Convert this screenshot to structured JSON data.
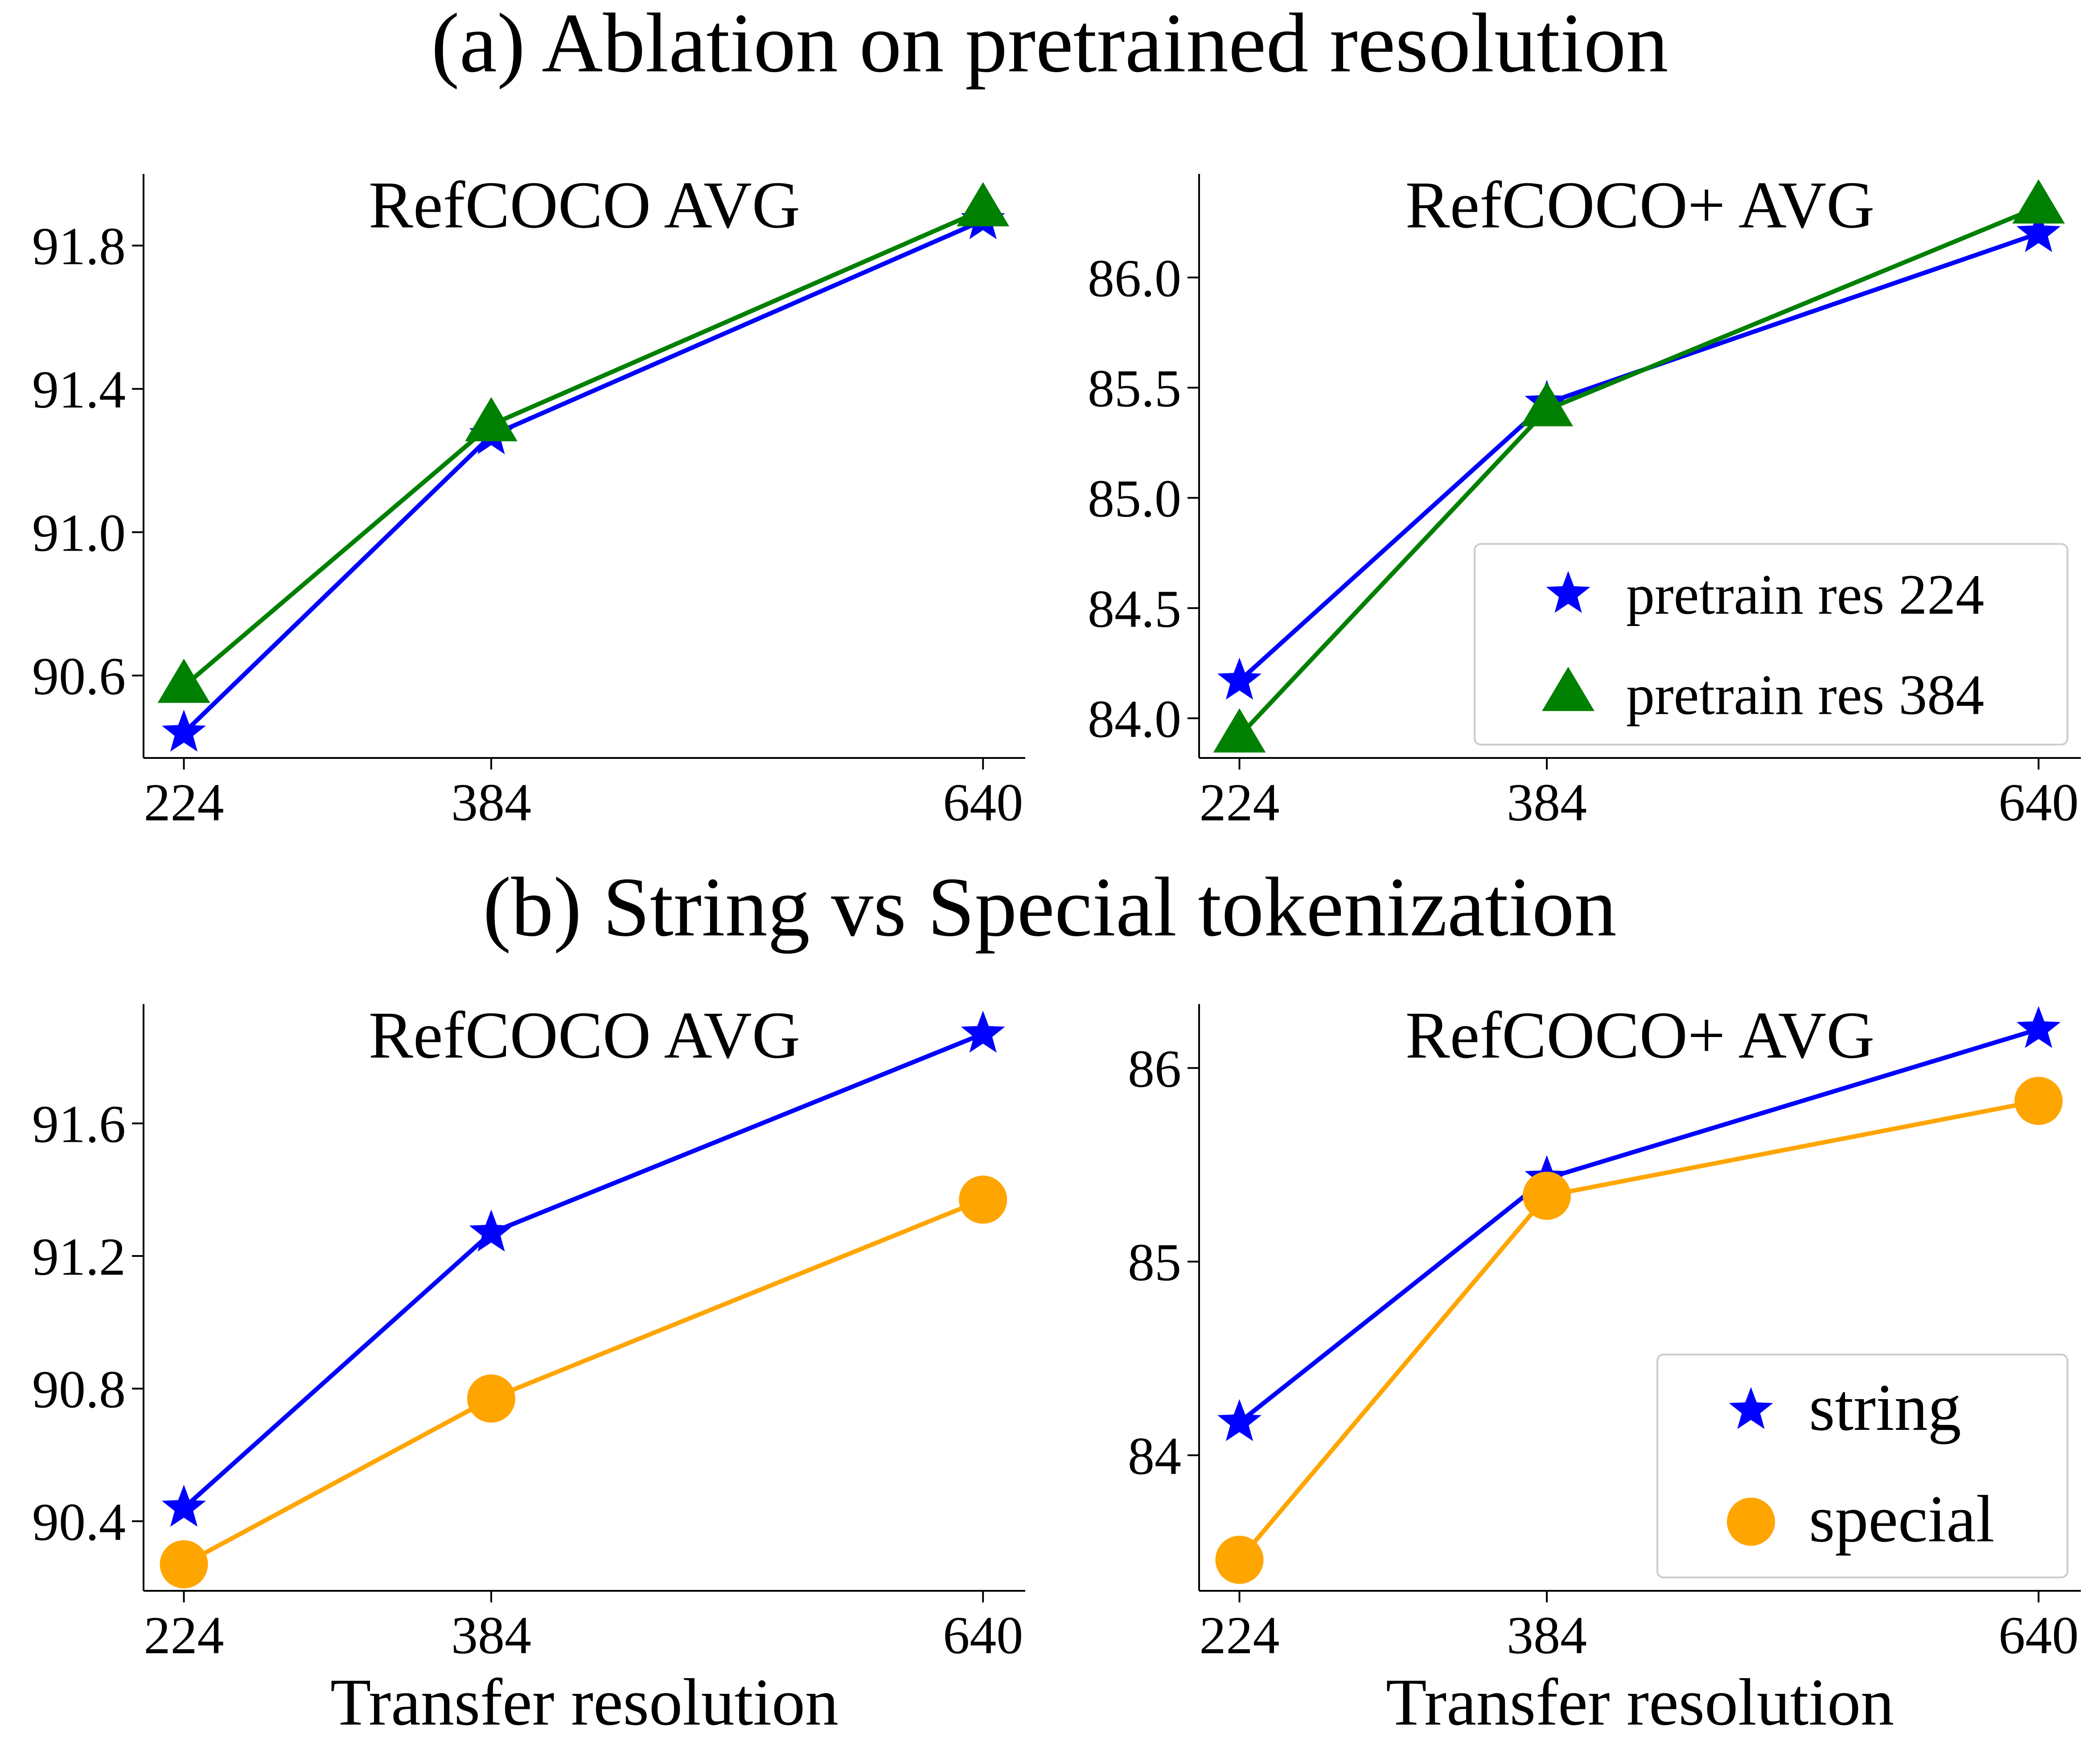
{
  "figure": {
    "row_a_title": "(a) Ablation on pretrained resolution",
    "row_b_title": "(b) String vs Special tokenization"
  },
  "colors": {
    "blue": "#0000ff",
    "green": "#008000",
    "orange": "#ffa500"
  },
  "chart_data": [
    {
      "id": "a-refcoco",
      "type": "line",
      "title": "RefCOCO AVG",
      "xlabel": "",
      "x": [
        224,
        384,
        640
      ],
      "xticks": [
        "224",
        "384",
        "640"
      ],
      "xlim": [
        203,
        662
      ],
      "ylim": [
        90.37,
        92.0
      ],
      "yticks": [
        90.6,
        91.0,
        91.4,
        91.8
      ],
      "ytick_labels": [
        "90.6",
        "91.0",
        "91.4",
        "91.8"
      ],
      "series": [
        {
          "name": "pretrain res 224",
          "marker": "star",
          "color": "#0000ff",
          "values": [
            90.44,
            91.27,
            91.87
          ]
        },
        {
          "name": "pretrain res 384",
          "marker": "triangle",
          "color": "#008000",
          "values": [
            90.57,
            91.3,
            91.9
          ]
        }
      ],
      "legend": null
    },
    {
      "id": "a-refcocoplus",
      "type": "line",
      "title": "RefCOCO+ AVG",
      "xlabel": "",
      "x": [
        224,
        384,
        640
      ],
      "xticks": [
        "224",
        "384",
        "640"
      ],
      "xlim": [
        203,
        662
      ],
      "ylim": [
        83.82,
        86.47
      ],
      "yticks": [
        84.0,
        84.5,
        85.0,
        85.5,
        86.0
      ],
      "ytick_labels": [
        "84.0",
        "84.5",
        "85.0",
        "85.5",
        "86.0"
      ],
      "series": [
        {
          "name": "pretrain res 224",
          "marker": "star",
          "color": "#0000ff",
          "values": [
            84.17,
            85.43,
            86.2
          ]
        },
        {
          "name": "pretrain res 384",
          "marker": "triangle",
          "color": "#008000",
          "values": [
            83.92,
            85.4,
            86.32
          ]
        }
      ],
      "legend": {
        "position": "lower-right",
        "entries": [
          "pretrain res 224",
          "pretrain res 384"
        ]
      }
    },
    {
      "id": "b-refcoco",
      "type": "line",
      "title": "RefCOCO AVG",
      "xlabel": "Transfer resolution",
      "x": [
        224,
        384,
        640
      ],
      "xticks": [
        "224",
        "384",
        "640"
      ],
      "xlim": [
        203,
        662
      ],
      "ylim": [
        90.19,
        91.96
      ],
      "yticks": [
        90.4,
        90.8,
        91.2,
        91.6
      ],
      "ytick_labels": [
        "90.4",
        "90.8",
        "91.2",
        "91.6"
      ],
      "series": [
        {
          "name": "string",
          "marker": "star",
          "color": "#0000ff",
          "values": [
            90.44,
            91.27,
            91.87
          ]
        },
        {
          "name": "special",
          "marker": "circle",
          "color": "#ffa500",
          "values": [
            90.27,
            90.77,
            91.37
          ]
        }
      ],
      "legend": null
    },
    {
      "id": "b-refcocoplus",
      "type": "line",
      "title": "RefCOCO+ AVG",
      "xlabel": "Transfer resolution",
      "x": [
        224,
        384,
        640
      ],
      "xticks": [
        "224",
        "384",
        "640"
      ],
      "xlim": [
        203,
        662
      ],
      "ylim": [
        83.3,
        86.33
      ],
      "yticks": [
        84,
        85,
        86
      ],
      "ytick_labels": [
        "84",
        "85",
        "86"
      ],
      "series": [
        {
          "name": "string",
          "marker": "star",
          "color": "#0000ff",
          "values": [
            84.17,
            85.43,
            86.2
          ]
        },
        {
          "name": "special",
          "marker": "circle",
          "color": "#ffa500",
          "values": [
            83.46,
            85.34,
            85.83
          ]
        }
      ],
      "legend": {
        "position": "lower-right",
        "entries": [
          "string",
          "special"
        ]
      }
    }
  ]
}
